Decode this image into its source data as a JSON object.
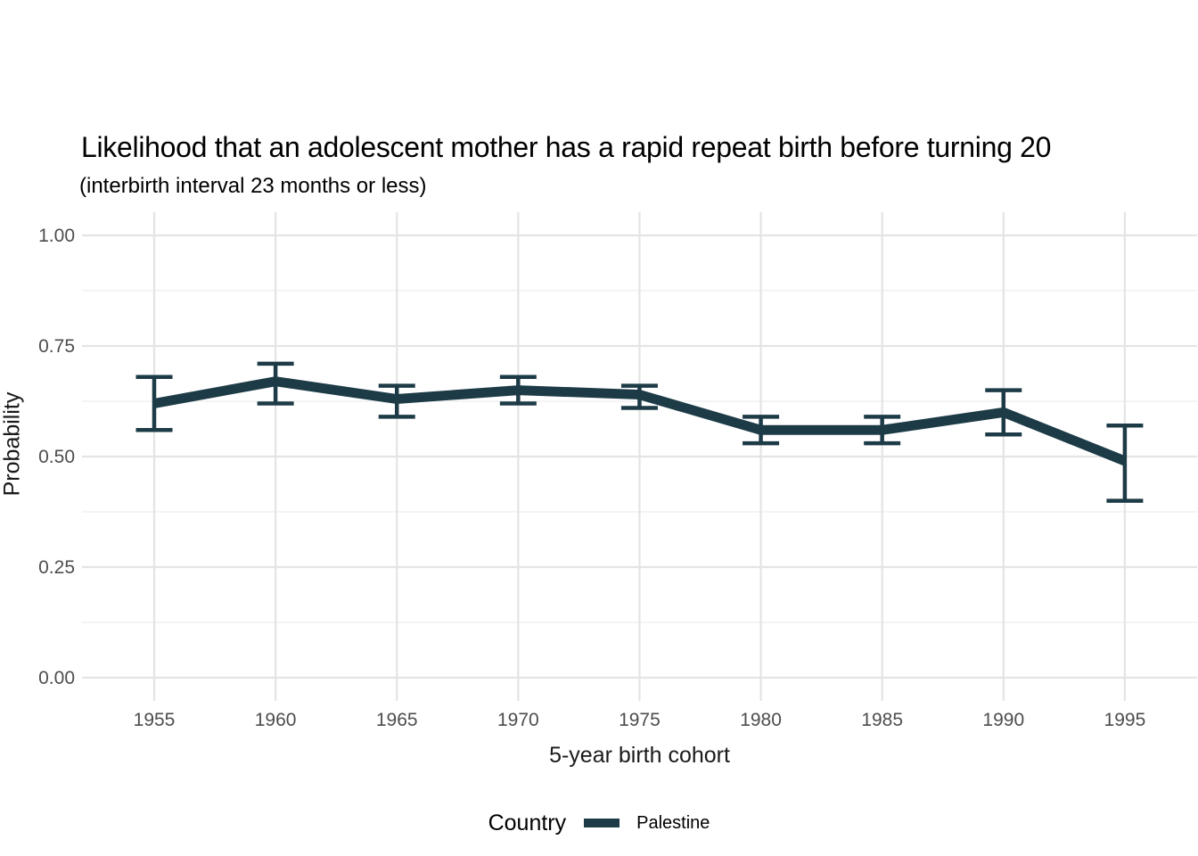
{
  "header": {
    "title": "Likelihood that an adolescent mother has a rapid repeat birth before turning 20",
    "subtitle": "(interbirth interval 23 months or less)"
  },
  "legend": {
    "title": "Country",
    "series_label": "Palestine"
  },
  "colors": {
    "series": "#1d3b47",
    "grid_major": "#e4e4e4",
    "grid_minor": "#f0f0f0",
    "axis_text": "#4d4d4d",
    "title_text": "#000000",
    "background": "#ffffff"
  },
  "chart_data": {
    "type": "line",
    "title": "Likelihood that an adolescent mother has a rapid repeat birth before turning 20",
    "subtitle": "(interbirth interval 23 months or less)",
    "xlabel": "5-year birth cohort",
    "ylabel": "Probability",
    "x": [
      1955,
      1960,
      1965,
      1970,
      1975,
      1980,
      1985,
      1990,
      1995
    ],
    "xtick_labels": [
      "1955",
      "1960",
      "1965",
      "1970",
      "1975",
      "1980",
      "1985",
      "1990",
      "1995"
    ],
    "yticks": [
      0,
      0.25,
      0.5,
      0.75,
      1
    ],
    "ytick_labels": [
      "0.00",
      "0.25",
      "0.50",
      "0.75",
      "1.00"
    ],
    "ylim": [
      0,
      1
    ],
    "grid": "horizontal major and minor gridlines, vertical major gridlines only, no axis lines",
    "legend_position": "bottom",
    "error_bars": true,
    "series": [
      {
        "name": "Palestine",
        "color": "#1d3b47",
        "values": [
          0.62,
          0.67,
          0.63,
          0.65,
          0.64,
          0.56,
          0.56,
          0.6,
          0.49
        ],
        "ci_low": [
          0.56,
          0.62,
          0.59,
          0.62,
          0.61,
          0.53,
          0.53,
          0.55,
          0.4
        ],
        "ci_high": [
          0.68,
          0.71,
          0.66,
          0.68,
          0.66,
          0.59,
          0.59,
          0.65,
          0.57
        ]
      }
    ]
  }
}
